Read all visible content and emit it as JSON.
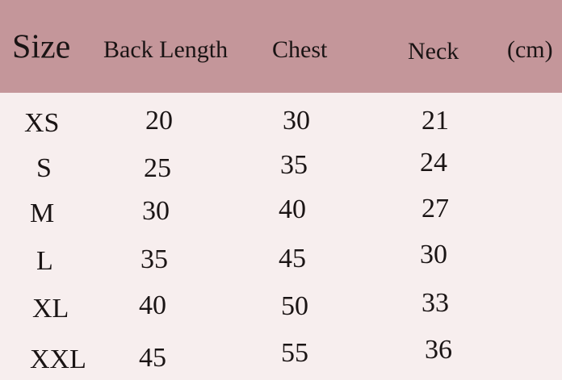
{
  "table": {
    "header": [
      "Size",
      "Back Length",
      "Chest",
      "Neck",
      "(cm)"
    ],
    "rows": [
      [
        "XS",
        20,
        30,
        21
      ],
      [
        "S",
        25,
        35,
        24
      ],
      [
        "M",
        30,
        40,
        27
      ],
      [
        "L",
        35,
        45,
        30
      ],
      [
        "XL",
        40,
        50,
        33
      ],
      [
        "XXL",
        45,
        55,
        36
      ]
    ]
  }
}
